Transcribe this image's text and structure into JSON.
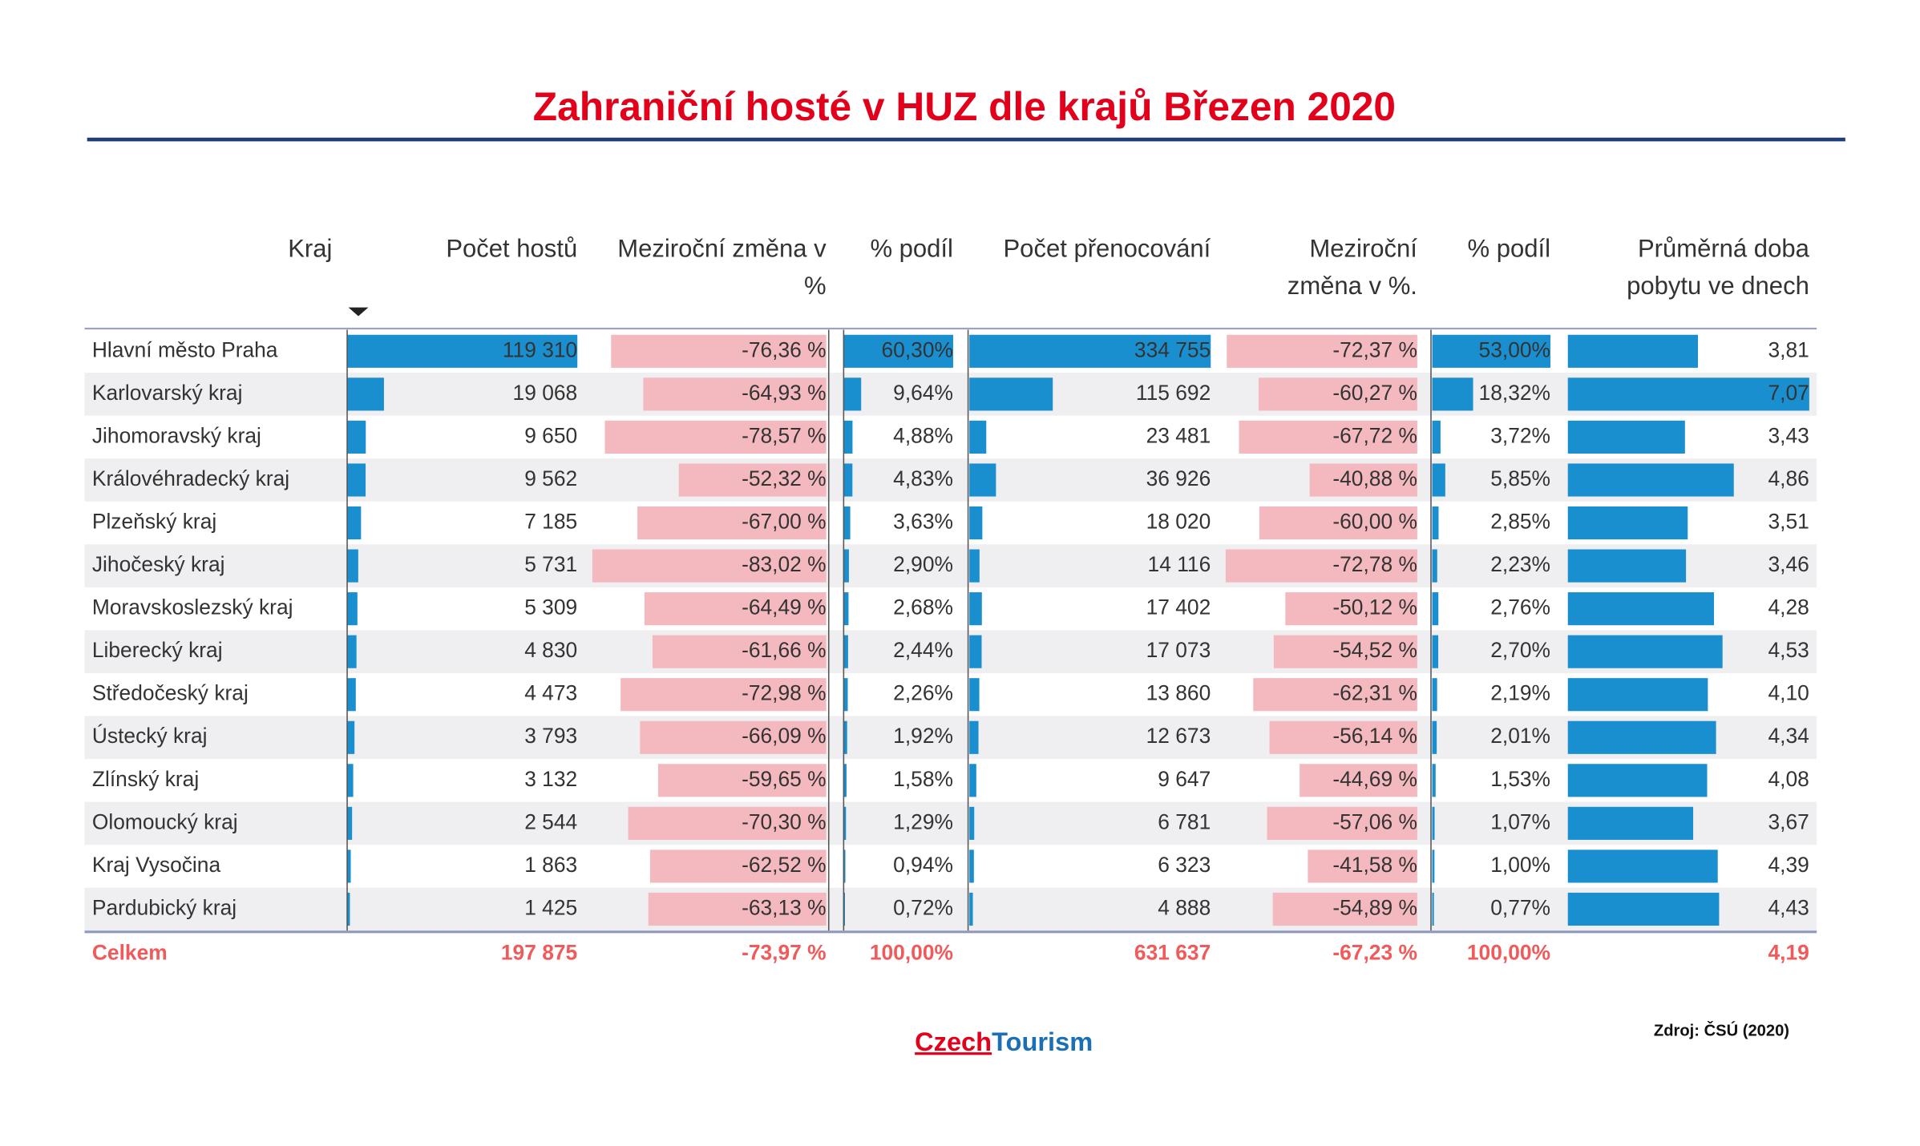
{
  "header": {
    "title": "Zahraniční hosté v HUZ dle krajů Březen 2020"
  },
  "table": {
    "columns": [
      [
        "Kraj"
      ],
      [
        "Počet hostů"
      ],
      [
        "Meziroční změna v",
        "%"
      ],
      [
        "% podíl"
      ],
      [
        "Počet přenocování"
      ],
      [
        "Meziroční",
        "změna v %."
      ],
      [
        "% podíl"
      ],
      [
        "Průměrná doba",
        "pobytu ve dnech"
      ]
    ],
    "rows": [
      [
        "Hlavní město Praha",
        "119 310",
        "-76,36 %",
        "60,30%",
        "334 755",
        "-72,37 %",
        "53,00%",
        "3,81"
      ],
      [
        "Karlovarský kraj",
        "19 068",
        "-64,93 %",
        "9,64%",
        "115 692",
        "-60,27 %",
        "18,32%",
        "7,07"
      ],
      [
        "Jihomoravský kraj",
        "9 650",
        "-78,57 %",
        "4,88%",
        "23 481",
        "-67,72 %",
        "3,72%",
        "3,43"
      ],
      [
        "Královéhradecký kraj",
        "9 562",
        "-52,32 %",
        "4,83%",
        "36 926",
        "-40,88 %",
        "5,85%",
        "4,86"
      ],
      [
        "Plzeňský kraj",
        "7 185",
        "-67,00 %",
        "3,63%",
        "18 020",
        "-60,00 %",
        "2,85%",
        "3,51"
      ],
      [
        "Jihočeský kraj",
        "5 731",
        "-83,02 %",
        "2,90%",
        "14 116",
        "-72,78 %",
        "2,23%",
        "3,46"
      ],
      [
        "Moravskoslezský kraj",
        "5 309",
        "-64,49 %",
        "2,68%",
        "17 402",
        "-50,12 %",
        "2,76%",
        "4,28"
      ],
      [
        "Liberecký kraj",
        "4 830",
        "-61,66 %",
        "2,44%",
        "17 073",
        "-54,52 %",
        "2,70%",
        "4,53"
      ],
      [
        "Středočeský kraj",
        "4 473",
        "-72,98 %",
        "2,26%",
        "13 860",
        "-62,31 %",
        "2,19%",
        "4,10"
      ],
      [
        "Ústecký kraj",
        "3 793",
        "-66,09 %",
        "1,92%",
        "12 673",
        "-56,14 %",
        "2,01%",
        "4,34"
      ],
      [
        "Zlínský kraj",
        "3 132",
        "-59,65 %",
        "1,58%",
        "9 647",
        "-44,69 %",
        "1,53%",
        "4,08"
      ],
      [
        "Olomoucký kraj",
        "2 544",
        "-70,30 %",
        "1,29%",
        "6 781",
        "-57,06 %",
        "1,07%",
        "3,67"
      ],
      [
        "Kraj Vysočina",
        "1 863",
        "-62,52 %",
        "0,94%",
        "6 323",
        "-41,58 %",
        "1,00%",
        "4,39"
      ],
      [
        "Pardubický kraj",
        "1 425",
        "-63,13 %",
        "0,72%",
        "4 888",
        "-54,89 %",
        "0,77%",
        "4,43"
      ]
    ],
    "total": [
      "Celkem",
      "197 875",
      "-73,97 %",
      "100,00%",
      "631 637",
      "-67,23 %",
      "100,00%",
      "4,19"
    ]
  },
  "footer": {
    "logo_left": "Czech",
    "logo_right": "Tourism",
    "source": "Zdroj: ČSÚ (2020)"
  }
}
